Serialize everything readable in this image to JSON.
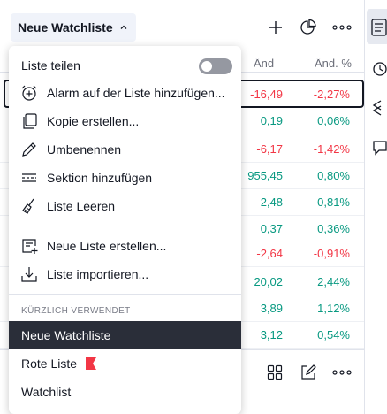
{
  "header": {
    "watchlist_title": "Neue Watchliste",
    "add_icon": "plus-icon",
    "pie_icon": "pie-chart-icon",
    "more_icon": "more-dots-icon"
  },
  "columns": {
    "chg": "Änd",
    "chgp": "Änd. %"
  },
  "rows": [
    {
      "chg": "-16,49",
      "chgp": "-2,27%",
      "dir": "neg"
    },
    {
      "chg": "0,19",
      "chgp": "0,06%",
      "dir": "pos"
    },
    {
      "chg": "-6,17",
      "chgp": "-1,42%",
      "dir": "neg"
    },
    {
      "chg": "955,45",
      "chgp": "0,80%",
      "dir": "pos"
    },
    {
      "chg": "2,48",
      "chgp": "0,81%",
      "dir": "pos"
    },
    {
      "chg": "0,37",
      "chgp": "0,36%",
      "dir": "pos"
    },
    {
      "chg": "-2,64",
      "chgp": "-0,91%",
      "dir": "neg"
    },
    {
      "chg": "20,02",
      "chgp": "2,44%",
      "dir": "pos"
    },
    {
      "chg": "3,89",
      "chgp": "1,12%",
      "dir": "pos"
    },
    {
      "chg": "3,12",
      "chgp": "0,54%",
      "dir": "pos"
    }
  ],
  "menu": {
    "share": {
      "label": "Liste teilen",
      "toggle_on": false
    },
    "items": [
      {
        "label": "Alarm auf der Liste hinzufügen...",
        "icon": "alarm-clock-plus-icon"
      },
      {
        "label": "Kopie erstellen...",
        "icon": "copy-icon"
      },
      {
        "label": "Umbenennen",
        "icon": "pencil-icon"
      },
      {
        "label": "Sektion hinzufügen",
        "icon": "section-icon"
      },
      {
        "label": "Liste Leeren",
        "icon": "broom-icon"
      }
    ],
    "items2": [
      {
        "label": "Neue Liste erstellen...",
        "icon": "new-list-icon"
      },
      {
        "label": "Liste importieren...",
        "icon": "import-icon"
      }
    ],
    "recent_header": "KÜRZLICH VERWENDET",
    "recent": [
      {
        "label": "Neue Watchliste",
        "active": true
      },
      {
        "label": "Rote Liste",
        "flag": "red-flag-icon",
        "flag_color": "#f23645"
      },
      {
        "label": "Watchlist"
      }
    ]
  },
  "colors": {
    "positive": "#089981",
    "negative": "#f23645",
    "active_bg": "#2a2e39"
  }
}
